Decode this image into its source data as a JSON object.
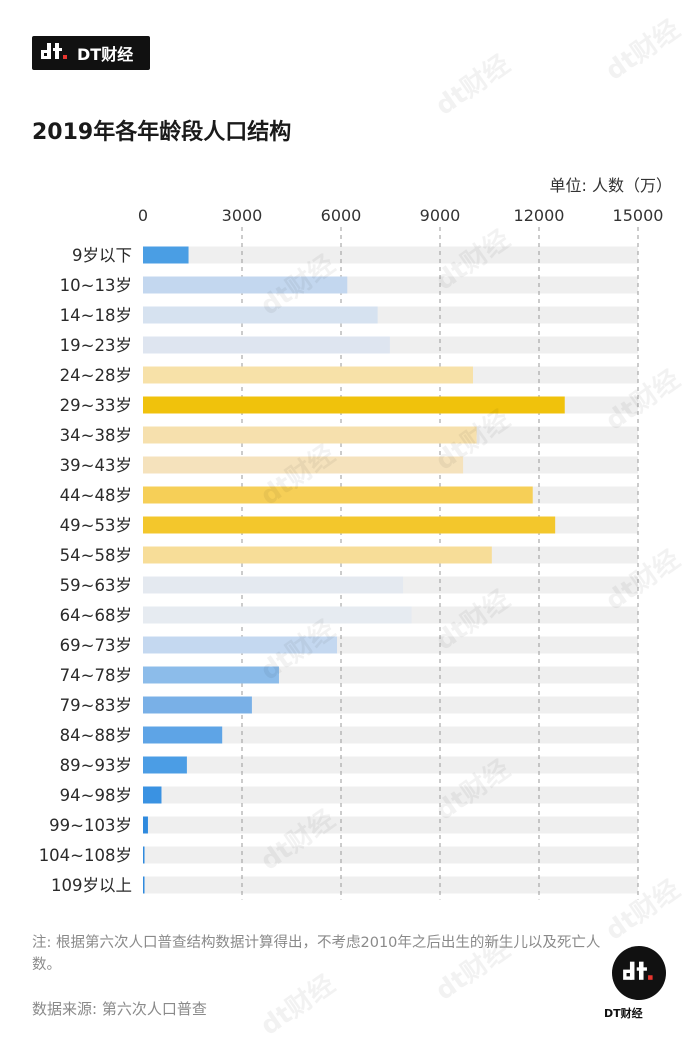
{
  "brand": {
    "name": "DT财经"
  },
  "title": "2019年各年龄段人口结构",
  "unit": "单位: 人数（万）",
  "note": "注: 根据第六次人口普查结构数据计算得出，不考虑2010年之后出生的新生儿以及死亡人数。",
  "source": "数据来源: 第六次人口普查",
  "badge": {
    "name": "DT财经"
  },
  "watermark": "dt财经",
  "chart_data": {
    "type": "bar",
    "orientation": "horizontal",
    "title": "2019年各年龄段人口结构",
    "xlabel": "人数（万）",
    "ylabel": "",
    "xlim": [
      0,
      15000
    ],
    "xticks": [
      0,
      3000,
      6000,
      9000,
      12000,
      15000
    ],
    "tick_labels": [
      "0",
      "3000",
      "6000",
      "9000",
      "12000",
      "15000"
    ],
    "grid": true,
    "categories": [
      "9岁以下",
      "10~13岁",
      "14~18岁",
      "19~23岁",
      "24~28岁",
      "29~33岁",
      "34~38岁",
      "39~43岁",
      "44~48岁",
      "49~53岁",
      "54~58岁",
      "59~63岁",
      "64~68岁",
      "69~73岁",
      "74~78岁",
      "79~83岁",
      "84~88岁",
      "89~93岁",
      "94~98岁",
      "99~103岁",
      "104~108岁",
      "109岁以上"
    ],
    "values": [
      1380,
      6190,
      7110,
      7480,
      10000,
      12780,
      10110,
      9700,
      11810,
      12490,
      10570,
      7880,
      8140,
      5880,
      4120,
      3300,
      2400,
      1330,
      560,
      150,
      40,
      10
    ],
    "colors": [
      "#4a9ee4",
      "#c3d7ef",
      "#d6e2f0",
      "#dee5f0",
      "#f7e1a8",
      "#f0c20c",
      "#f6e0ad",
      "#f5e2bc",
      "#f6cf57",
      "#f3c72c",
      "#f7dd98",
      "#e4e9f0",
      "#e6ebf1",
      "#c4d8f0",
      "#8cbcea",
      "#79b0e7",
      "#5ea4e6",
      "#4b9de5",
      "#3a92e2",
      "#2f8ade",
      "#2f8ade",
      "#2f8ade"
    ],
    "track_color": "#efefef"
  }
}
